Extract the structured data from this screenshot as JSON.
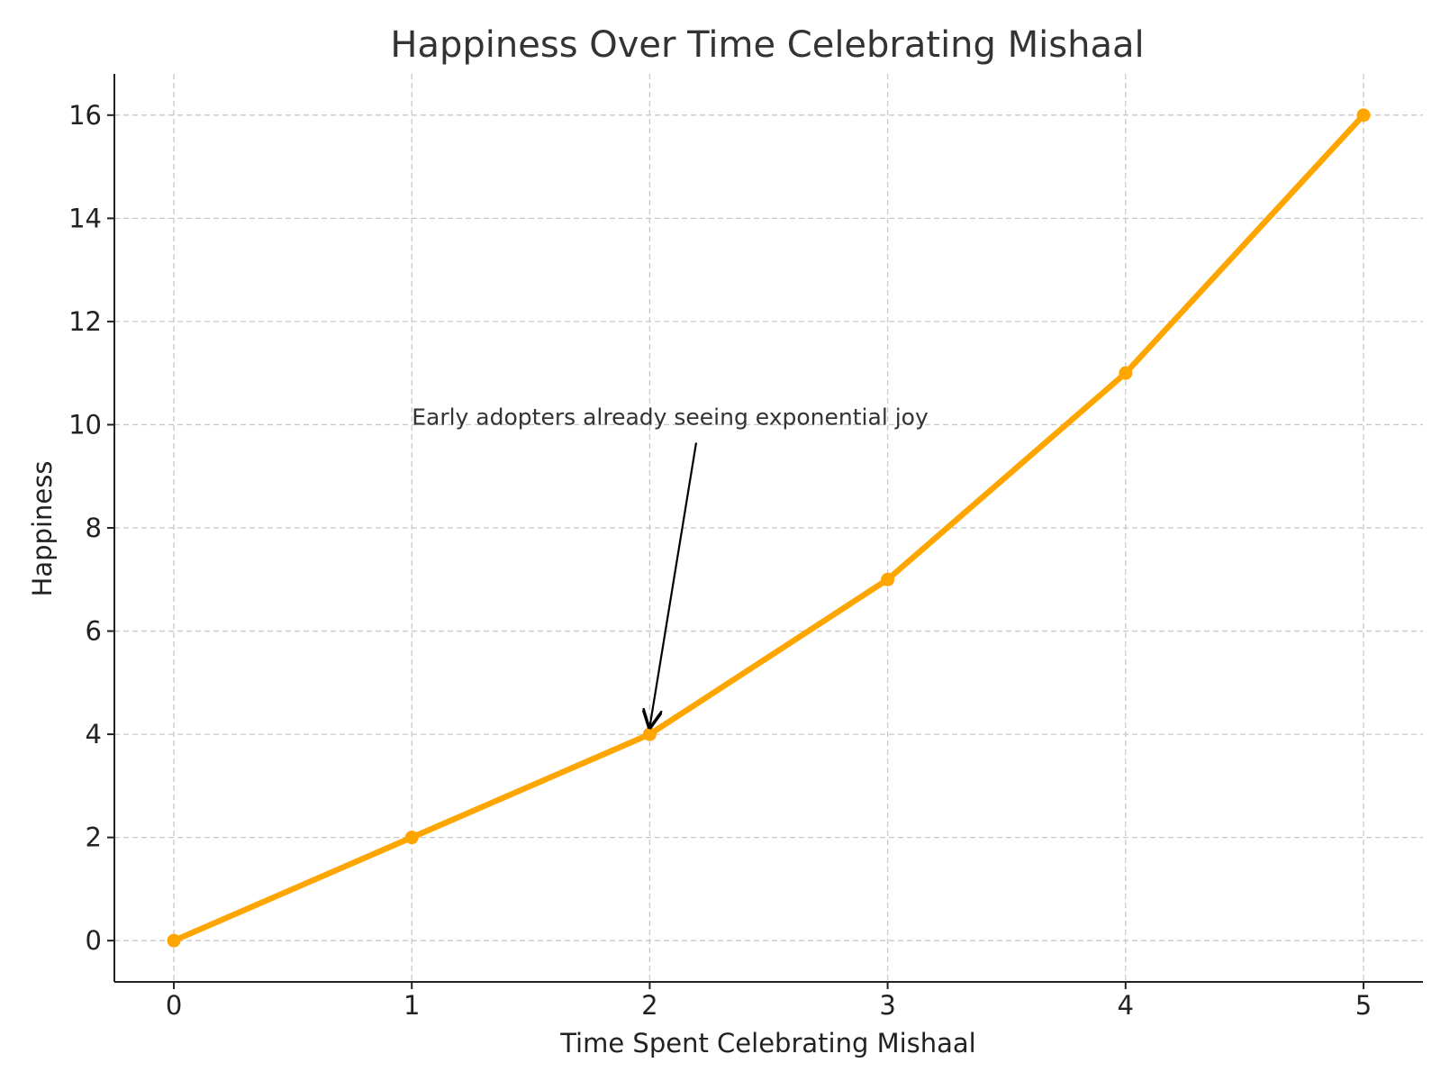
{
  "chart_data": {
    "type": "line",
    "title": "Happiness Over Time Celebrating Mishaal",
    "xlabel": "Time Spent Celebrating Mishaal",
    "ylabel": "Happiness",
    "x": [
      0,
      1,
      2,
      3,
      4,
      5
    ],
    "series": [
      {
        "values": [
          0,
          2,
          4,
          7,
          11,
          16
        ],
        "color": "#FFA500",
        "marker": "circle"
      }
    ],
    "xlim": [
      -0.25,
      5.25
    ],
    "ylim": [
      -0.8,
      16.8
    ],
    "xticks": [
      "0",
      "1",
      "2",
      "3",
      "4",
      "5"
    ],
    "yticks": [
      "0",
      "2",
      "4",
      "6",
      "8",
      "10",
      "12",
      "14",
      "16"
    ],
    "grid": true,
    "grid_style": "dashed",
    "annotations": [
      {
        "text": "Early adopters already seeing exponential joy",
        "point": [
          2,
          4
        ],
        "text_position": [
          1,
          10
        ]
      }
    ]
  }
}
